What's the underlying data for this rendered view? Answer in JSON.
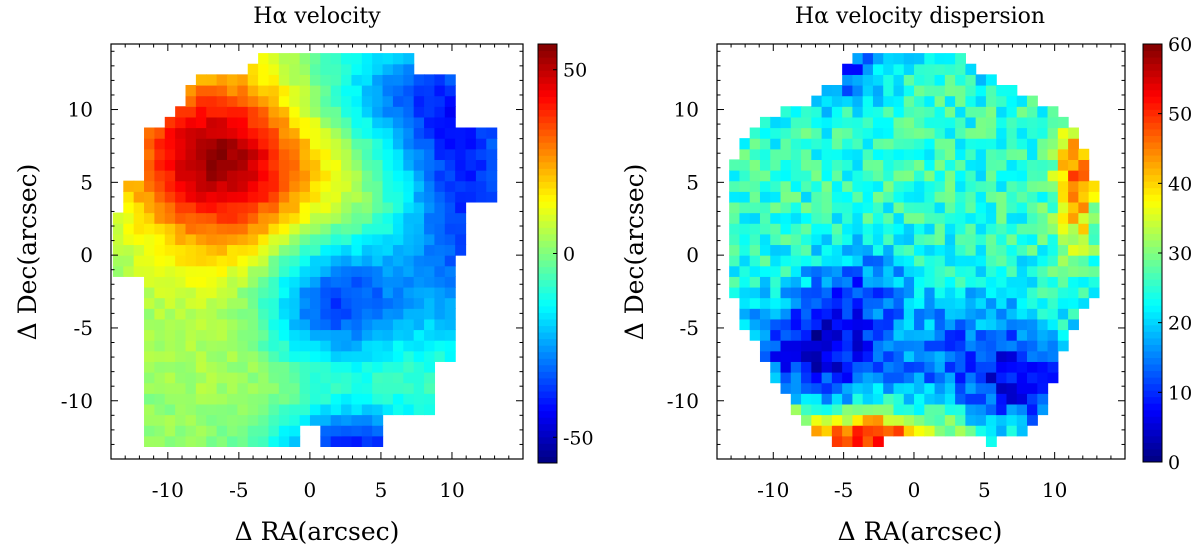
{
  "figure": {
    "chart_data": [
      {
        "type": "heatmap",
        "title": "Hα velocity",
        "xlabel": "Δ RA(arcsec)",
        "ylabel": "Δ Dec(arcsec)",
        "xlim": [
          -14,
          15
        ],
        "ylim": [
          -14,
          14.5
        ],
        "xticks": [
          -10,
          -5,
          0,
          5,
          10
        ],
        "yticks": [
          -10,
          -5,
          0,
          5,
          10
        ],
        "xtick_labels": [
          "-10",
          "-5",
          "0",
          "5",
          "10"
        ],
        "ytick_labels": [
          "-10",
          "-5",
          "0",
          "5",
          "10"
        ],
        "colorbar": {
          "range": [
            -57,
            57
          ],
          "colormap": "jet",
          "ticks": [
            50,
            0,
            -50
          ],
          "tick_labels": [
            "50",
            "0",
            "-50"
          ]
        },
        "pixel_size_arcsec": 0.73,
        "field": {
          "x_range": [
            -13.5,
            14
          ],
          "y_range": [
            -13.5,
            14
          ],
          "note": "velocity field: redshifted lobe peaking ~45 near (-7,7); blueshifted lobe ~-45 near (1,-3); background ~0",
          "components": [
            {
              "kind": "gaussian",
              "center": [
                -7,
                7
              ],
              "amplitude": 45,
              "sigma": [
                4.5,
                4.0
              ]
            },
            {
              "kind": "gaussian",
              "center": [
                -2,
                1
              ],
              "amplitude": 18,
              "sigma": [
                6,
                8
              ]
            },
            {
              "kind": "gaussian",
              "center": [
                1.5,
                -3
              ],
              "amplitude": -48,
              "sigma": [
                4.0,
                3.5
              ]
            },
            {
              "kind": "gaussian",
              "center": [
                11,
                4
              ],
              "amplitude": -38,
              "sigma": [
                3.5,
                7
              ]
            },
            {
              "kind": "gaussian",
              "center": [
                6,
                11
              ],
              "amplitude": -25,
              "sigma": [
                5,
                3
              ]
            },
            {
              "kind": "gaussian",
              "center": [
                3,
                -13
              ],
              "amplitude": -40,
              "sigma": [
                4,
                2
              ]
            }
          ],
          "noise": 3
        }
      },
      {
        "type": "heatmap",
        "title": "Hα velocity dispersion",
        "xlabel": "Δ RA(arcsec)",
        "ylabel": "Δ Dec(arcsec)",
        "xlim": [
          -14,
          15
        ],
        "ylim": [
          -14,
          14.5
        ],
        "xticks": [
          -10,
          -5,
          0,
          5,
          10
        ],
        "yticks": [
          -10,
          -5,
          0,
          5,
          10
        ],
        "xtick_labels": [
          "-10",
          "-5",
          "0",
          "5",
          "10"
        ],
        "ytick_labels": [
          "-10",
          "-5",
          "0",
          "5",
          "10"
        ],
        "colorbar": {
          "range": [
            0,
            60
          ],
          "colormap": "jet",
          "ticks": [
            60,
            50,
            40,
            30,
            20,
            10,
            0
          ],
          "tick_labels": [
            "60",
            "50",
            "40",
            "30",
            "20",
            "10",
            "0"
          ]
        },
        "pixel_size_arcsec": 0.73,
        "field": {
          "x_range": [
            -13.5,
            13.5
          ],
          "y_range": [
            -13.5,
            14
          ],
          "note": "dispersion: mostly 20-30, low (<10) clumps at edges/SW, high (40-55) at south edge and east edge",
          "base": 25,
          "components": [
            {
              "kind": "gaussian",
              "center": [
                -3,
                -12.5
              ],
              "amplitude": 28,
              "sigma": [
                4,
                1.2
              ]
            },
            {
              "kind": "gaussian",
              "center": [
                -10.5,
                -11
              ],
              "amplitude": 18,
              "sigma": [
                1.2,
                1.5
              ]
            },
            {
              "kind": "gaussian",
              "center": [
                11.5,
                5
              ],
              "amplitude": 22,
              "sigma": [
                1.0,
                3
              ]
            },
            {
              "kind": "gaussian",
              "center": [
                -7,
                -6.5
              ],
              "amplitude": -20,
              "sigma": [
                3.5,
                2.5
              ]
            },
            {
              "kind": "gaussian",
              "center": [
                -4,
                -2
              ],
              "amplitude": -10,
              "sigma": [
                2.5,
                2.0
              ]
            },
            {
              "kind": "gaussian",
              "center": [
                -7,
                13
              ],
              "amplitude": -22,
              "sigma": [
                3,
                1.5
              ]
            },
            {
              "kind": "gaussian",
              "center": [
                7,
                13.5
              ],
              "amplitude": -22,
              "sigma": [
                2,
                1
              ]
            },
            {
              "kind": "gaussian",
              "center": [
                4,
                -7
              ],
              "amplitude": -12,
              "sigma": [
                4,
                3
              ]
            },
            {
              "kind": "gaussian",
              "center": [
                8,
                -9
              ],
              "amplitude": -12,
              "sigma": [
                2.5,
                2
              ]
            }
          ],
          "noise": 5
        }
      }
    ]
  }
}
